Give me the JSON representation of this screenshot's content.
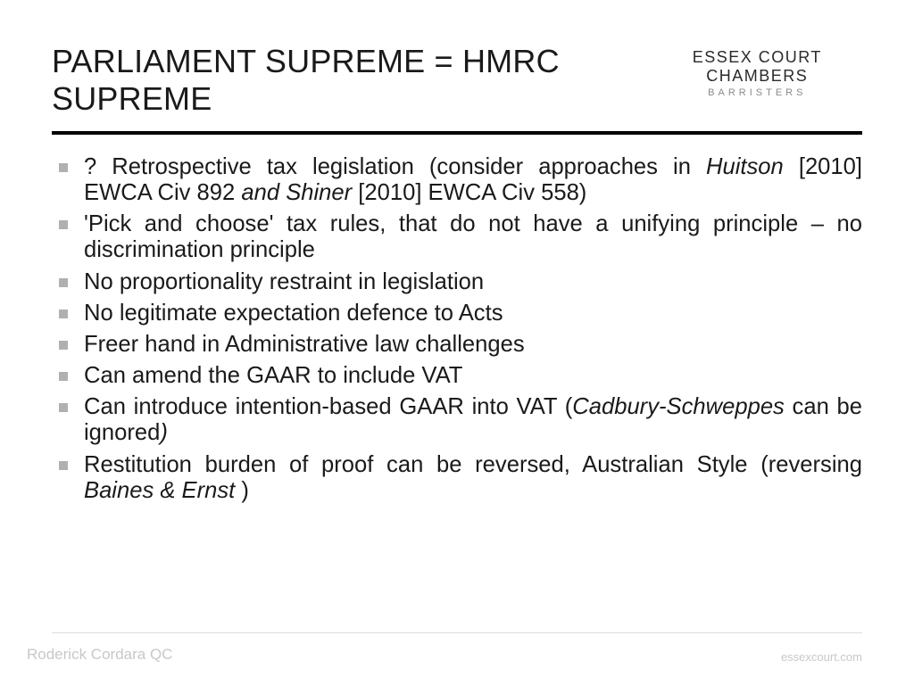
{
  "title": "PARLIAMENT SUPREME = HMRC SUPREME",
  "logo": {
    "main": "ESSEX COURT CHAMBERS",
    "sub": "BARRISTERS"
  },
  "bullets": [
    {
      "segments": [
        {
          "t": "? Retrospective tax legislation (consider approaches in "
        },
        {
          "t": "Huitson",
          "it": true
        },
        {
          "t": " [2010] EWCA Civ 892 "
        },
        {
          "t": "and Shiner",
          "it": true
        },
        {
          "t": " [2010] EWCA Civ 558)"
        }
      ]
    },
    {
      "segments": [
        {
          "t": "'Pick and choose' tax rules, that do not have a unifying principle – no discrimination principle"
        }
      ]
    },
    {
      "segments": [
        {
          "t": "No proportionality restraint in legislation"
        }
      ]
    },
    {
      "segments": [
        {
          "t": "No legitimate expectation defence to Acts"
        }
      ]
    },
    {
      "segments": [
        {
          "t": "Freer hand in Administrative law challenges"
        }
      ]
    },
    {
      "segments": [
        {
          "t": "Can amend the GAAR to include VAT"
        }
      ]
    },
    {
      "segments": [
        {
          "t": "Can introduce intention-based GAAR into VAT ("
        },
        {
          "t": "Cadbury-Schweppes",
          "it": true
        },
        {
          "t": " can be ignored"
        },
        {
          "t": ")",
          "it": true
        }
      ]
    },
    {
      "segments": [
        {
          "t": "Restitution burden of proof can be reversed, Australian Style (reversing "
        },
        {
          "t": "Baines & Ernst ",
          "it": true
        },
        {
          "t": ")"
        }
      ]
    }
  ],
  "footer": {
    "left": "Roderick Cordara QC",
    "right": "essexcourt.com"
  },
  "style": {
    "bullet_color": "#b0b0b0",
    "title_color": "#1a1a1a",
    "hr_color": "#000000",
    "bg": "#ffffff",
    "body_fontsize": 25.6,
    "title_fontsize": 36
  }
}
